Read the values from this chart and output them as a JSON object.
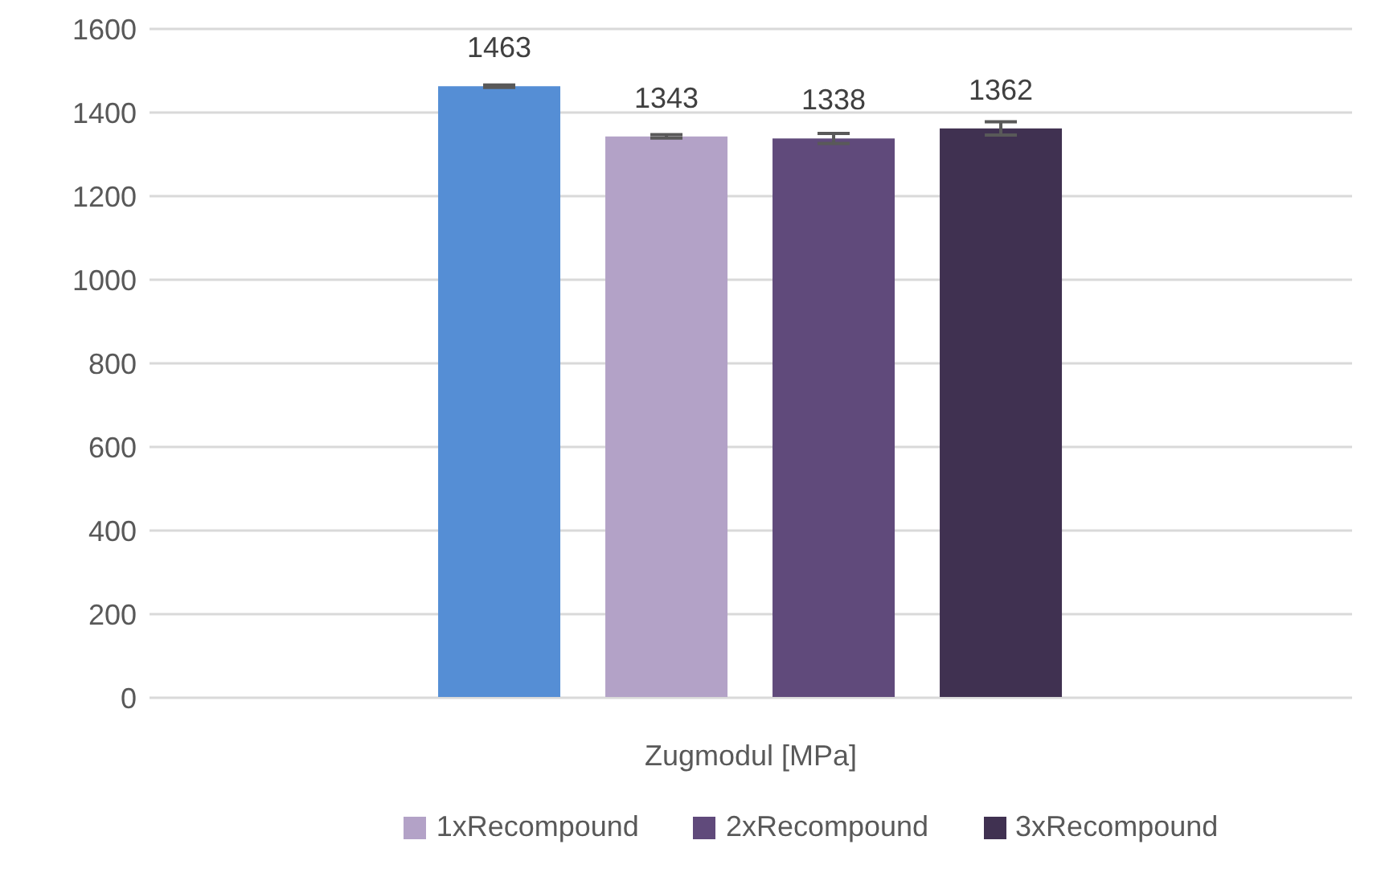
{
  "chart_data": {
    "type": "bar",
    "xlabel": "Zugmodul [MPa]",
    "categories": [
      null
    ],
    "series": [
      {
        "color": "#558ed5",
        "values": [
          1463
        ],
        "errors": [
          3
        ]
      },
      {
        "name": "1xRecompound",
        "color": "#b3a2c7",
        "values": [
          1343
        ],
        "errors": [
          4
        ]
      },
      {
        "name": "2xRecompound",
        "color": "#604a7b",
        "values": [
          1338
        ],
        "errors": [
          12
        ]
      },
      {
        "name": "3xRecompound",
        "color": "#403151",
        "values": [
          1362
        ],
        "errors": [
          16
        ]
      }
    ],
    "ylim": [
      0,
      1600
    ],
    "yticks": [
      0,
      200,
      400,
      600,
      800,
      1000,
      1200,
      1400,
      1600
    ],
    "grid": "y",
    "legend": "bottom",
    "data_labels": true
  }
}
